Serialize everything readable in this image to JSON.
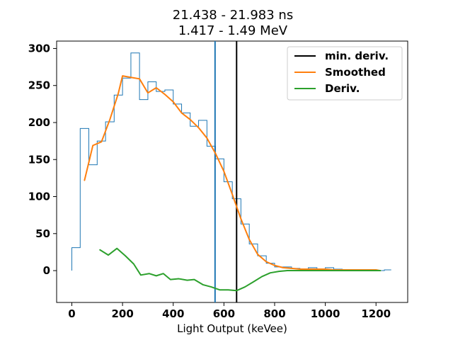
{
  "chart_data": {
    "type": "line",
    "title_line1": "21.438 - 21.983 ns",
    "title_line2": "1.417 - 1.49 MeV",
    "xlabel": "Light Output (keVee)",
    "ylabel": "",
    "xlim": [
      -60,
      1325
    ],
    "ylim": [
      -43,
      310
    ],
    "x_ticks": [
      0,
      200,
      400,
      600,
      800,
      1000,
      1200
    ],
    "y_ticks": [
      0,
      50,
      100,
      150,
      200,
      250,
      300
    ],
    "grid": false,
    "legend_position": "top-right",
    "histogram": {
      "color": "#1f77b4",
      "edges": [
        0,
        33,
        67,
        100,
        133,
        167,
        200,
        233,
        267,
        300,
        333,
        367,
        400,
        433,
        467,
        500,
        533,
        567,
        600,
        633,
        667,
        700,
        733,
        767,
        800,
        833,
        867,
        900,
        933,
        967,
        1000,
        1033,
        1067,
        1100,
        1133,
        1167,
        1200,
        1233,
        1260
      ],
      "counts": [
        31,
        192,
        143,
        175,
        201,
        237,
        260,
        294,
        231,
        255,
        242,
        244,
        225,
        213,
        195,
        203,
        168,
        151,
        120,
        97,
        63,
        36,
        20,
        10,
        5,
        5,
        3,
        2,
        4,
        2,
        4,
        2,
        1,
        1,
        1,
        1,
        0,
        1
      ]
    },
    "vertical_lines": [
      {
        "x": 565,
        "color": "#1f77b4"
      },
      {
        "x": 650,
        "color": "#000000",
        "name": "min. deriv."
      }
    ],
    "series": [
      {
        "name": "Smoothed",
        "color": "#ff7f0e",
        "x": [
          50,
          83,
          117,
          150,
          183,
          200,
          233,
          267,
          300,
          333,
          367,
          400,
          433,
          467,
          500,
          533,
          567,
          600,
          633,
          667,
          700,
          733,
          767,
          800,
          833,
          867,
          900,
          933,
          967,
          1000,
          1033,
          1067,
          1100,
          1133,
          1167,
          1200,
          1217
        ],
        "y": [
          122,
          169,
          174,
          204,
          239,
          263,
          261,
          259,
          240,
          247,
          238,
          228,
          213,
          204,
          193,
          179,
          158,
          134,
          103,
          70,
          42,
          22,
          12,
          7,
          4,
          3,
          2,
          2,
          2,
          2,
          1,
          1,
          1,
          1,
          1,
          1,
          0
        ]
      },
      {
        "name": "Deriv.",
        "color": "#2ca02c",
        "x": [
          111,
          144,
          178,
          211,
          244,
          272,
          305,
          333,
          361,
          389,
          422,
          455,
          483,
          517,
          550,
          583,
          617,
          650,
          683,
          717,
          750,
          783,
          817,
          850,
          883,
          917,
          950,
          983,
          1017,
          1050,
          1083,
          1117,
          1150,
          1183,
          1217
        ],
        "y": [
          28,
          21,
          30,
          20,
          9,
          -6,
          -4,
          -7,
          -4,
          -12,
          -11,
          -13,
          -12,
          -19,
          -22,
          -26,
          -26,
          -27,
          -22,
          -15,
          -8,
          -3,
          -1,
          0,
          0,
          0,
          0,
          0,
          0,
          0,
          0,
          0,
          0,
          0,
          0
        ]
      }
    ],
    "legend": [
      {
        "label": "min. deriv.",
        "color": "#000000"
      },
      {
        "label": "Smoothed",
        "color": "#ff7f0e"
      },
      {
        "label": "Deriv.",
        "color": "#2ca02c"
      }
    ]
  }
}
